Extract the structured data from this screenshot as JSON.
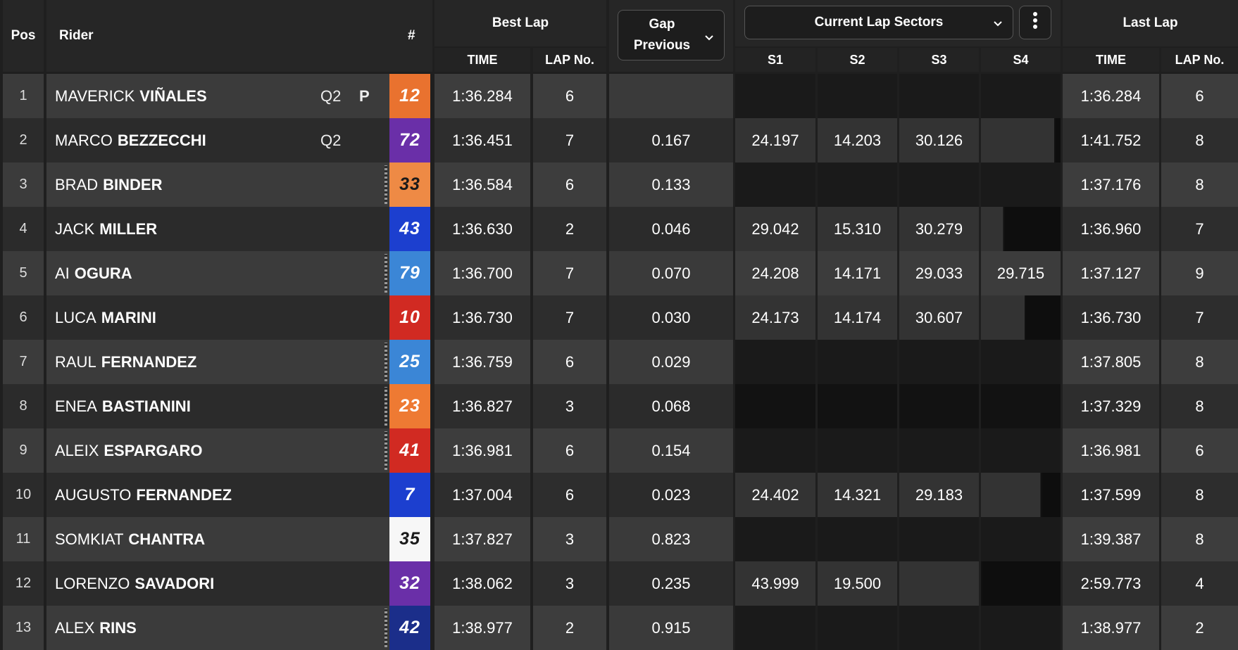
{
  "header": {
    "pos": "Pos",
    "rider": "Rider",
    "number": "#",
    "best_lap": "Best Lap",
    "best_time": "TIME",
    "best_lapno": "LAP No.",
    "gap_line1": "Gap",
    "gap_line2": "Previous",
    "sectors_dropdown": "Current Lap Sectors",
    "s1": "S1",
    "s2": "S2",
    "s3": "S3",
    "s4": "S4",
    "last_lap": "Last Lap",
    "last_time": "TIME",
    "last_lapno": "LAP No."
  },
  "icons": {
    "gap_dropdown": "chevron-down-icon",
    "sectors_dropdown": "chevron-down-icon",
    "more": "vertical-dots-icon",
    "pit": "pit-flag-icon"
  },
  "rows": [
    {
      "pos": "1",
      "first": "MAVERICK",
      "last": "VIÑALES",
      "q": "Q2",
      "pit": "P",
      "num": "12",
      "numBg": "#e9722f",
      "numColor": "#ffffff",
      "checker": false,
      "best": "1:36.284",
      "bestLap": "6",
      "gap": "",
      "s1": "",
      "s2": "",
      "s3": "",
      "s4": "",
      "lastTime": "1:36.284",
      "lastLap": "6"
    },
    {
      "pos": "2",
      "first": "MARCO",
      "last": "BEZZECCHI",
      "q": "Q2",
      "pit": "",
      "num": "72",
      "numBg": "#6a2fa8",
      "numColor": "#ffffff",
      "checker": false,
      "best": "1:36.451",
      "bestLap": "7",
      "gap": "0.167",
      "s1": "24.197",
      "s2": "14.203",
      "s3": "30.126",
      "s4": "",
      "lastTime": "1:41.752",
      "lastLap": "8"
    },
    {
      "pos": "3",
      "first": "BRAD",
      "last": "BINDER",
      "q": "",
      "pit": "",
      "num": "33",
      "numBg": "#ee8a45",
      "numColor": "#1a1a1a",
      "checker": true,
      "best": "1:36.584",
      "bestLap": "6",
      "gap": "0.133",
      "s1": "",
      "s2": "",
      "s3": "",
      "s4": "",
      "lastTime": "1:37.176",
      "lastLap": "8"
    },
    {
      "pos": "4",
      "first": "JACK",
      "last": "MILLER",
      "q": "",
      "pit": "",
      "num": "43",
      "numBg": "#1c3fcf",
      "numColor": "#ffffff",
      "checker": false,
      "best": "1:36.630",
      "bestLap": "2",
      "gap": "0.046",
      "s1": "29.042",
      "s2": "15.310",
      "s3": "30.279",
      "s4": "",
      "lastTime": "1:36.960",
      "lastLap": "7"
    },
    {
      "pos": "5",
      "first": "AI",
      "last": "OGURA",
      "q": "",
      "pit": "",
      "num": "79",
      "numBg": "#3b86d6",
      "numColor": "#ffffff",
      "checker": true,
      "best": "1:36.700",
      "bestLap": "7",
      "gap": "0.070",
      "s1": "24.208",
      "s2": "14.171",
      "s3": "29.033",
      "s4": "29.715",
      "lastTime": "1:37.127",
      "lastLap": "9"
    },
    {
      "pos": "6",
      "first": "LUCA",
      "last": "MARINI",
      "q": "",
      "pit": "",
      "num": "10",
      "numBg": "#d12a22",
      "numColor": "#ffffff",
      "checker": false,
      "best": "1:36.730",
      "bestLap": "7",
      "gap": "0.030",
      "s1": "24.173",
      "s2": "14.174",
      "s3": "30.607",
      "s4": "",
      "lastTime": "1:36.730",
      "lastLap": "7"
    },
    {
      "pos": "7",
      "first": "RAUL",
      "last": "FERNANDEZ",
      "q": "",
      "pit": "",
      "num": "25",
      "numBg": "#3b86d6",
      "numColor": "#ffffff",
      "checker": true,
      "best": "1:36.759",
      "bestLap": "6",
      "gap": "0.029",
      "s1": "",
      "s2": "",
      "s3": "",
      "s4": "",
      "lastTime": "1:37.805",
      "lastLap": "8"
    },
    {
      "pos": "8",
      "first": "ENEA",
      "last": "BASTIANINI",
      "q": "",
      "pit": "",
      "num": "23",
      "numBg": "#ee7a33",
      "numColor": "#ffffff",
      "checker": true,
      "best": "1:36.827",
      "bestLap": "3",
      "gap": "0.068",
      "s1": "",
      "s2": "",
      "s3": "",
      "s4": "",
      "lastTime": "1:37.329",
      "lastLap": "8"
    },
    {
      "pos": "9",
      "first": "ALEIX",
      "last": "ESPARGARO",
      "q": "",
      "pit": "",
      "num": "41",
      "numBg": "#d12a22",
      "numColor": "#ffffff",
      "checker": true,
      "best": "1:36.981",
      "bestLap": "6",
      "gap": "0.154",
      "s1": "",
      "s2": "",
      "s3": "",
      "s4": "",
      "lastTime": "1:36.981",
      "lastLap": "6"
    },
    {
      "pos": "10",
      "first": "AUGUSTO",
      "last": "FERNANDEZ",
      "q": "",
      "pit": "",
      "num": "7",
      "numBg": "#1c3fcf",
      "numColor": "#ffffff",
      "checker": false,
      "best": "1:37.004",
      "bestLap": "6",
      "gap": "0.023",
      "s1": "24.402",
      "s2": "14.321",
      "s3": "29.183",
      "s4": "",
      "lastTime": "1:37.599",
      "lastLap": "8"
    },
    {
      "pos": "11",
      "first": "SOMKIAT",
      "last": "CHANTRA",
      "q": "",
      "pit": "",
      "num": "35",
      "numBg": "#f7f7f7",
      "numColor": "#1a1a1a",
      "checker": false,
      "best": "1:37.827",
      "bestLap": "3",
      "gap": "0.823",
      "s1": "",
      "s2": "",
      "s3": "",
      "s4": "",
      "lastTime": "1:39.387",
      "lastLap": "8"
    },
    {
      "pos": "12",
      "first": "LORENZO",
      "last": "SAVADORI",
      "q": "",
      "pit": "",
      "num": "32",
      "numBg": "#6a2fa8",
      "numColor": "#ffffff",
      "checker": false,
      "best": "1:38.062",
      "bestLap": "3",
      "gap": "0.235",
      "s1": "43.999",
      "s2": "19.500",
      "s3": "",
      "s4": "",
      "lastTime": "2:59.773",
      "lastLap": "4"
    },
    {
      "pos": "13",
      "first": "ALEX",
      "last": "RINS",
      "q": "",
      "pit": "",
      "num": "42",
      "numBg": "#1b2e8a",
      "numColor": "#ffffff",
      "checker": true,
      "best": "1:38.977",
      "bestLap": "2",
      "gap": "0.915",
      "s1": "",
      "s2": "",
      "s3": "",
      "s4": "",
      "lastTime": "1:38.977",
      "lastLap": "2"
    }
  ]
}
